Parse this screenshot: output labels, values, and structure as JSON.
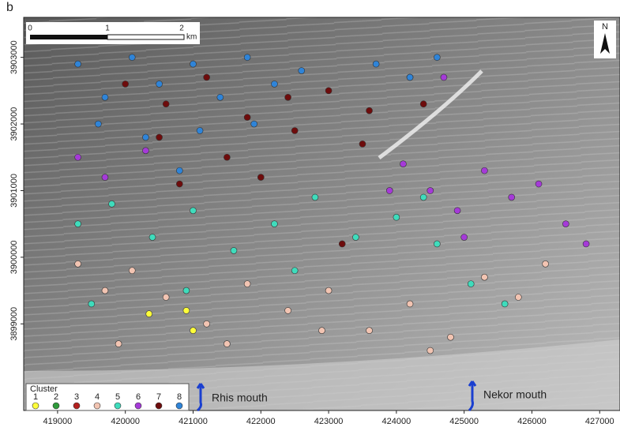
{
  "chart_data": {
    "type": "scatter",
    "panel_label": "b",
    "xlim": [
      418500,
      427300
    ],
    "ylim": [
      3897700,
      3903600
    ],
    "xticks": [
      419000,
      420000,
      421000,
      422000,
      423000,
      424000,
      425000,
      426000,
      427000
    ],
    "yticks": [
      3899000,
      3900000,
      3901000,
      3902000,
      3903000
    ],
    "scale_bar": {
      "labels": [
        "0",
        "1",
        "2"
      ],
      "unit": "km"
    },
    "north": "N",
    "legend_title": "Cluster",
    "annotations": [
      "Rhis mouth",
      "Nekor mouth"
    ],
    "series": [
      {
        "name": "1",
        "color": "#ffff3a",
        "x": [
          420350,
          420900,
          421000
        ],
        "y": [
          3899150,
          3899200,
          3898900
        ]
      },
      {
        "name": "2",
        "color": "#2e9a3a",
        "x": [],
        "y": []
      },
      {
        "name": "3",
        "color": "#b3201e",
        "x": [],
        "y": []
      },
      {
        "name": "4",
        "color": "#f2c4b2",
        "x": [
          419300,
          419700,
          420100,
          420600,
          421200,
          421800,
          422400,
          423000,
          423600,
          424200,
          424800,
          425300,
          425800,
          426200,
          419900,
          421500,
          422900,
          424500
        ],
        "y": [
          3899900,
          3899500,
          3899800,
          3899400,
          3899000,
          3899600,
          3899200,
          3899500,
          3898900,
          3899300,
          3898800,
          3899700,
          3899400,
          3899900,
          3898700,
          3898700,
          3898900,
          3898600
        ]
      },
      {
        "name": "5",
        "color": "#3fdcbc",
        "x": [
          419300,
          419800,
          420400,
          421000,
          421600,
          422200,
          422800,
          423400,
          424000,
          424600,
          425100,
          425600,
          420900,
          422500,
          424400,
          419500
        ],
        "y": [
          3900500,
          3900800,
          3900300,
          3900700,
          3900100,
          3900500,
          3900900,
          3900300,
          3900600,
          3900200,
          3899600,
          3899300,
          3899500,
          3899800,
          3900900,
          3899300
        ]
      },
      {
        "name": "6",
        "color": "#a53ad8",
        "x": [
          419300,
          419700,
          420300,
          424100,
          424500,
          424900,
          425300,
          425700,
          426100,
          426500,
          426800,
          425000,
          423900,
          424700
        ],
        "y": [
          3901500,
          3901200,
          3901600,
          3901400,
          3901000,
          3900700,
          3901300,
          3900900,
          3901100,
          3900500,
          3900200,
          3900300,
          3901000,
          3902700
        ]
      },
      {
        "name": "7",
        "color": "#6e0c0c",
        "x": [
          420000,
          420600,
          421200,
          421800,
          422400,
          423000,
          423600,
          424200,
          420500,
          421500,
          422500,
          423500,
          424400,
          420800,
          422000,
          423200
        ],
        "y": [
          3902600,
          3902300,
          3902700,
          3902100,
          3902400,
          3902500,
          3902200,
          3902700,
          3901800,
          3901500,
          3901900,
          3901700,
          3902300,
          3901100,
          3901200,
          3900200
        ]
      },
      {
        "name": "8",
        "color": "#2f84d8",
        "x": [
          419300,
          419700,
          420100,
          420500,
          421000,
          421400,
          421800,
          422200,
          422600,
          423700,
          424200,
          424600,
          419600,
          420300,
          421100,
          421900,
          420800
        ],
        "y": [
          3902900,
          3902400,
          3903000,
          3902600,
          3902900,
          3902400,
          3903000,
          3902600,
          3902800,
          3902900,
          3902700,
          3903000,
          3902000,
          3901800,
          3901900,
          3902000,
          3901300
        ]
      }
    ]
  }
}
